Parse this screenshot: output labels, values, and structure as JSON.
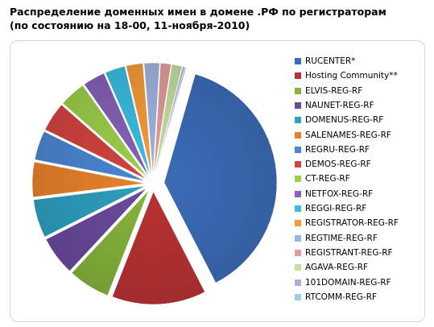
{
  "title_lines": [
    "Распределение доменных имен в домене .РФ по регистраторам",
    "(по состоянию на 18-00, 11-ноября-2010)"
  ],
  "chart_data": {
    "type": "pie",
    "title": "Распределение доменных имен в домене .РФ по регистраторам (по состоянию на 18-00, 11-ноября-2010)",
    "legend_position": "right",
    "exploded": true,
    "categories": [
      "RUCENTER*",
      "Hosting Community**",
      "ELVIS-REG-RF",
      "NAUNET-REG-RF",
      "DOMENUS-REG-RF",
      "SALENAMES-REG-RF",
      "REGRU-REG-RF",
      "DEMOS-REG-RF",
      "CT-REG-RF",
      "NETFOX-REG-RF",
      "REGGI-REG-RF",
      "REGISTRATOR-REG-RF",
      "REGTIME-REG-RF",
      "REGISTRANT-REG-RF",
      "AGAVA-REG-RF",
      "101DOMAIN-REG-RF",
      "RTCOMM-REG-RF"
    ],
    "values": [
      38.0,
      13.5,
      6.0,
      5.6,
      5.5,
      5.0,
      4.2,
      4.2,
      3.8,
      3.2,
      2.9,
      2.4,
      2.2,
      1.5,
      1.5,
      0.3,
      0.2
    ],
    "unit": "percent (estimated)",
    "colors": [
      "#3b6cb7",
      "#b83232",
      "#86b33a",
      "#6a4a9c",
      "#2e9fbf",
      "#e8822a",
      "#4b86d1",
      "#d2443f",
      "#9ccf4b",
      "#8562b8",
      "#3bbde0",
      "#f79a3a",
      "#9fb3de",
      "#e29c9b",
      "#c5dea0",
      "#b9a8d2",
      "#96d3e6"
    ]
  }
}
